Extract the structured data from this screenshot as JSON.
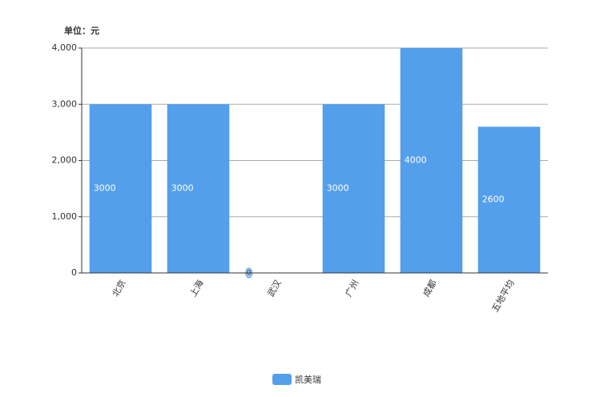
{
  "chart_data": {
    "type": "bar",
    "unit_label": "单位：元",
    "categories": [
      "北京",
      "上海",
      "武汉",
      "广州",
      "成都",
      "五地平均"
    ],
    "series": [
      {
        "name": "凯美瑞",
        "color": "#539fec",
        "values": [
          3000,
          3000,
          0,
          3000,
          4000,
          2600
        ]
      }
    ],
    "ylim": [
      0,
      4000
    ],
    "yticks": [
      0,
      {
        "value": 1000,
        "label": "1,000"
      },
      {
        "value": 2000,
        "label": "2,000"
      },
      {
        "value": 3000,
        "label": "3,000"
      },
      {
        "value": 4000,
        "label": "4,000"
      }
    ],
    "grid": true,
    "legend": "bottom"
  }
}
